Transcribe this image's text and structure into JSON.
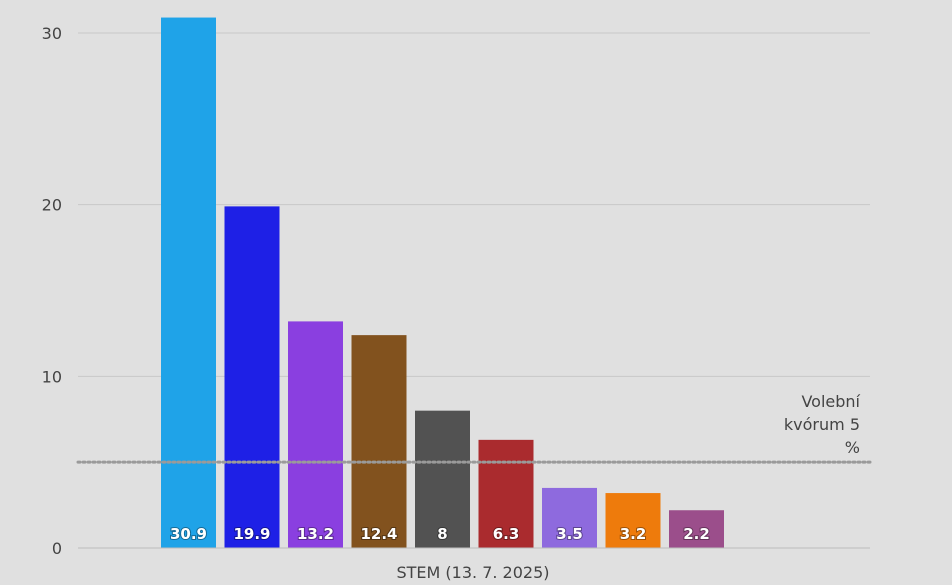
{
  "chart_data": {
    "type": "bar",
    "category_label": "STEM (13. 7. 2025)",
    "values": [
      30.9,
      19.9,
      13.2,
      12.4,
      8,
      6.3,
      3.5,
      3.2,
      2.2
    ],
    "value_labels": [
      "30.9",
      "19.9",
      "13.2",
      "12.4",
      "8",
      "6.3",
      "3.5",
      "3.2",
      "2.2"
    ],
    "colors": [
      "#1fa3e8",
      "#1e20e6",
      "#8a3fe0",
      "#82521e",
      "#525252",
      "#aa2b2e",
      "#8e6ade",
      "#ee7b0c",
      "#9b4e8b"
    ],
    "ylim": [
      0,
      32
    ],
    "yticks": [
      0,
      10,
      20,
      30
    ],
    "grid": true,
    "threshold": {
      "value": 5,
      "label_lines": [
        "Volební",
        "kvórum 5",
        "%"
      ]
    }
  }
}
